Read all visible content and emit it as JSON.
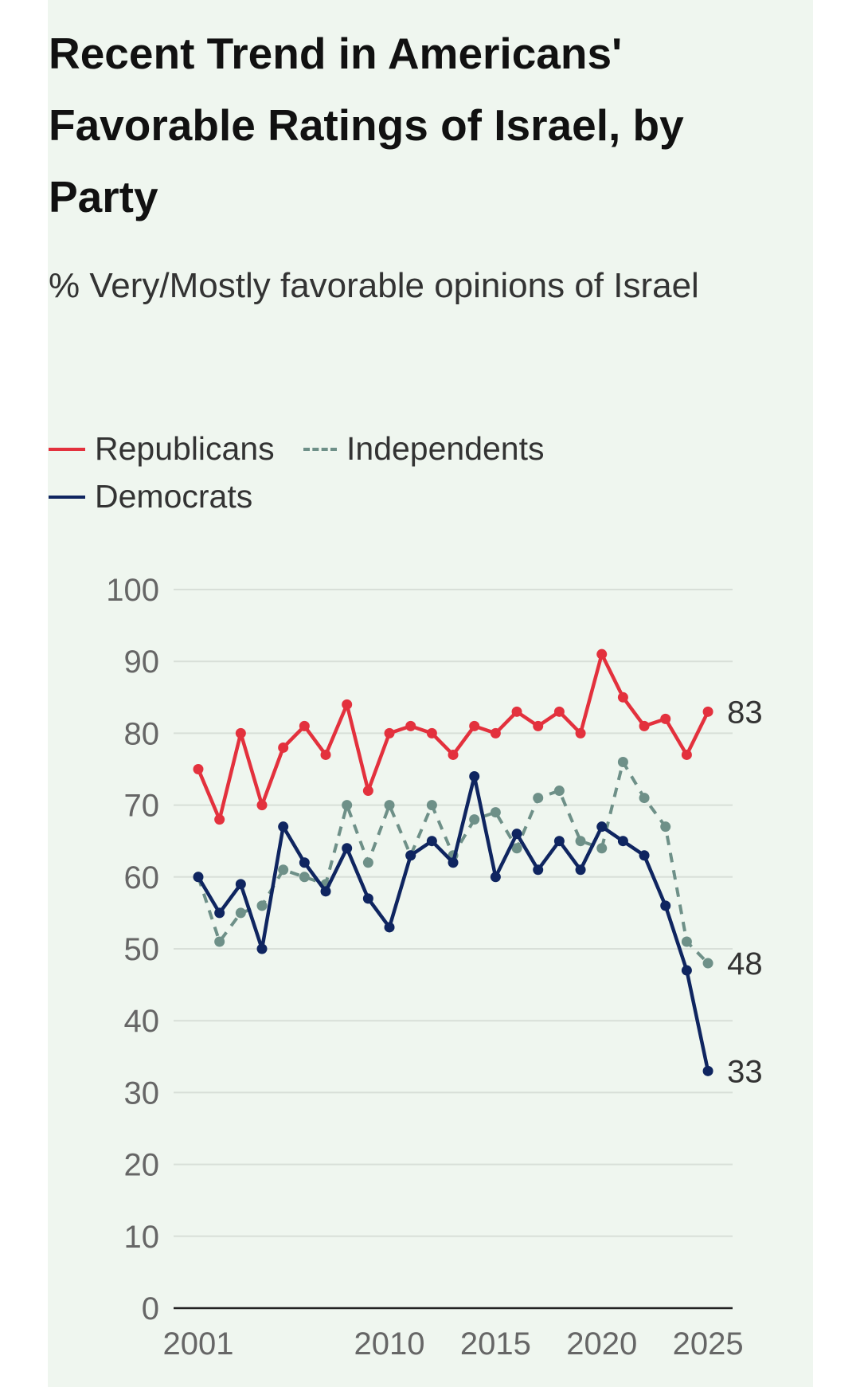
{
  "title": "Recent Trend in Americans' Favorable Ratings of Israel, by Party",
  "subtitle": "% Very/Mostly favorable opinions of Israel",
  "colors": {
    "republicans": "#e3313d",
    "independents": "#6e9088",
    "democrats": "#0f2560",
    "grid": "#d8dfd8",
    "background": "#eff6ef"
  },
  "legend": [
    {
      "name": "Republicans",
      "style": "solid",
      "color": "#e3313d"
    },
    {
      "name": "Independents",
      "style": "dashed",
      "color": "#6e9088"
    },
    {
      "name": "Democrats",
      "style": "solid",
      "color": "#0f2560"
    }
  ],
  "chart_data": {
    "type": "line",
    "title": "Recent Trend in Americans' Favorable Ratings of Israel, by Party",
    "subtitle": "% Very/Mostly favorable opinions of Israel",
    "x": [
      2001,
      2002,
      2003,
      2004,
      2005,
      2006,
      2007,
      2008,
      2009,
      2010,
      2011,
      2012,
      2013,
      2014,
      2015,
      2016,
      2017,
      2018,
      2019,
      2020,
      2021,
      2022,
      2023,
      2024,
      2025
    ],
    "x_tick_labels": [
      "2001",
      "2010",
      "2015",
      "2020",
      "2025"
    ],
    "y_ticks": [
      0,
      10,
      20,
      30,
      40,
      50,
      60,
      70,
      80,
      90,
      100
    ],
    "ylim": [
      0,
      100
    ],
    "grid": true,
    "legend_position": "top-left",
    "series": [
      {
        "name": "Republicans",
        "style": "solid",
        "values": [
          75,
          68,
          80,
          70,
          78,
          81,
          77,
          84,
          72,
          80,
          81,
          80,
          77,
          81,
          80,
          83,
          81,
          83,
          80,
          91,
          85,
          81,
          82,
          77,
          83
        ],
        "end_label": "83"
      },
      {
        "name": "Independents",
        "style": "dashed",
        "values": [
          60,
          51,
          55,
          56,
          61,
          60,
          59,
          70,
          62,
          70,
          63,
          70,
          63,
          68,
          69,
          64,
          71,
          72,
          65,
          64,
          76,
          71,
          67,
          51,
          48
        ],
        "end_label": "48"
      },
      {
        "name": "Democrats",
        "style": "solid",
        "values": [
          60,
          55,
          59,
          50,
          67,
          62,
          58,
          64,
          57,
          53,
          63,
          65,
          62,
          74,
          60,
          66,
          61,
          65,
          61,
          67,
          65,
          63,
          56,
          47,
          33
        ],
        "end_label": "33"
      }
    ]
  }
}
